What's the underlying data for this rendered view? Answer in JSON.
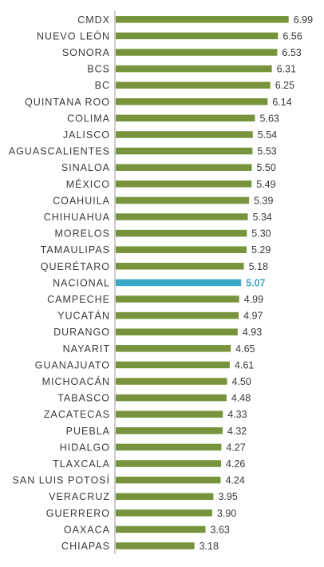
{
  "chart_data": {
    "type": "bar",
    "orientation": "horizontal",
    "categories": [
      "CMDX",
      "NUEVO LEÓN",
      "SONORA",
      "BCS",
      "BC",
      "QUINTANA ROO",
      "COLIMA",
      "JALISCO",
      "AGUASCALIENTES",
      "SINALOA",
      "MÉXICO",
      "COAHUILA",
      "CHIHUAHUA",
      "MORELOS",
      "TAMAULIPAS",
      "QUERÉTARO",
      "NACIONAL",
      "CAMPECHE",
      "YUCATÁN",
      "DURANGO",
      "NAYARIT",
      "GUANAJUATO",
      "MICHOACÁN",
      "TABASCO",
      "ZACATECAS",
      "PUEBLA",
      "HIDALGO",
      "TLAXCALA",
      "SAN LUIS POTOSÍ",
      "VERACRUZ",
      "GUERRERO",
      "OAXACA",
      "CHIAPAS"
    ],
    "values": [
      6.99,
      6.56,
      6.53,
      6.31,
      6.25,
      6.14,
      5.63,
      5.54,
      5.53,
      5.5,
      5.49,
      5.39,
      5.34,
      5.3,
      5.29,
      5.18,
      5.07,
      4.99,
      4.97,
      4.93,
      4.65,
      4.61,
      4.5,
      4.48,
      4.33,
      4.32,
      4.27,
      4.26,
      4.24,
      3.95,
      3.9,
      3.63,
      3.18
    ],
    "value_labels": [
      "6.99",
      "6.56",
      "6.53",
      "6.31",
      "6.25",
      "6.14",
      "5.63",
      "5.54",
      "5.53",
      "5.50",
      "5.49",
      "5.39",
      "5.34",
      "5.30",
      "5.29",
      "5.18",
      "5.07",
      "4.99",
      "4.97",
      "4.93",
      "4.65",
      "4.61",
      "4.50",
      "4.48",
      "4.33",
      "4.32",
      "4.27",
      "4.26",
      "4.24",
      "3.95",
      "3.90",
      "3.63",
      "3.18"
    ],
    "highlight_category": "NACIONAL",
    "xlim": [
      0,
      7
    ],
    "grid": false,
    "title": "",
    "xlabel": "",
    "ylabel": ""
  },
  "colors": {
    "bar": "#77933c",
    "highlight_bar": "#3aa9c9",
    "axis": "#9a9a9a"
  }
}
